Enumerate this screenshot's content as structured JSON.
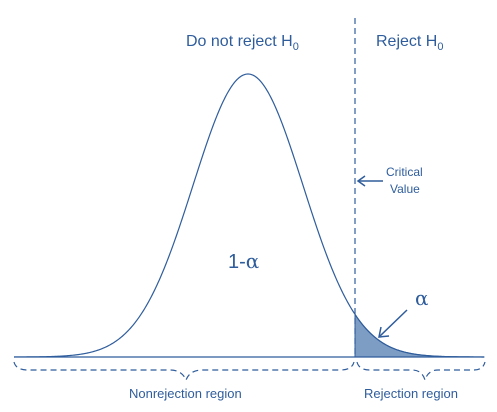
{
  "diagram": {
    "left_region": {
      "text": "Do not reject H",
      "sub": "0"
    },
    "right_region": {
      "text": "Reject H",
      "sub": "0"
    },
    "critical": {
      "line1": "Critical",
      "line2": "Value"
    },
    "one_minus_alpha": {
      "prefix": "1-",
      "alpha": "α"
    },
    "alpha_label": "α",
    "nonrejection_label": "Nonrejection region",
    "rejection_label": "Rejection region",
    "colors": {
      "stroke": "#2f5d9c",
      "shaded_fill": "#7e9dc4",
      "text": "#2f5d9c"
    }
  }
}
